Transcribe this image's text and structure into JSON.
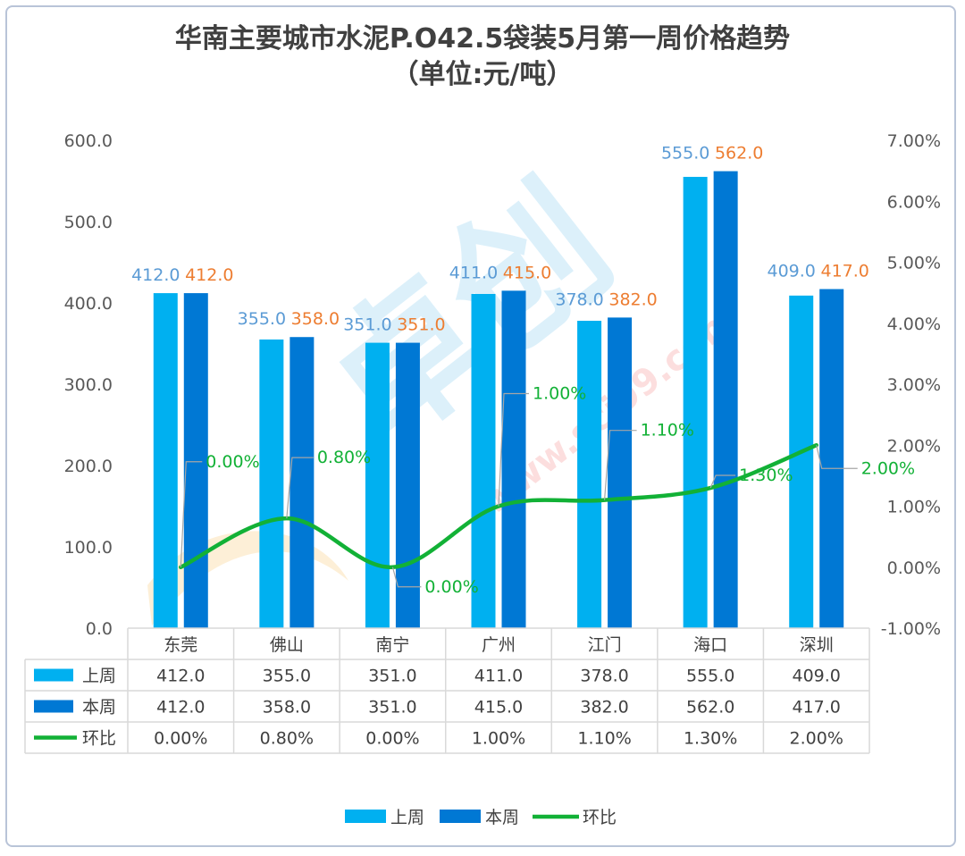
{
  "chart_title_lines": [
    "华南主要城市水泥P.O42.5袋装5月第一周价格趋势",
    "（单位:元/吨）"
  ],
  "colors": {
    "last_week": "#00b0f0",
    "this_week": "#0078d4",
    "mom": "#12b136",
    "last_week_label": "#5b9bd5",
    "this_week_label": "#ed7d31",
    "mom_label": "#12b136",
    "axis_text": "#595959",
    "table_border": "#d9d9d9"
  },
  "chart_data": {
    "type": "bar",
    "title": "华南主要城市水泥P.O42.5袋装5月第一周价格趋势（单位:元/吨）",
    "categories": [
      "东莞",
      "佛山",
      "南宁",
      "广州",
      "江门",
      "海口",
      "深圳"
    ],
    "series": [
      {
        "name": "上周",
        "type": "bar",
        "axis": "left",
        "values": [
          412.0,
          355.0,
          351.0,
          411.0,
          378.0,
          555.0,
          409.0
        ],
        "labels": [
          "412.0",
          "355.0",
          "351.0",
          "411.0",
          "378.0",
          "555.0",
          "409.0"
        ]
      },
      {
        "name": "本周",
        "type": "bar",
        "axis": "left",
        "values": [
          412.0,
          358.0,
          351.0,
          415.0,
          382.0,
          562.0,
          417.0
        ],
        "labels": [
          "412.0",
          "358.0",
          "351.0",
          "415.0",
          "382.0",
          "562.0",
          "417.0"
        ]
      },
      {
        "name": "环比",
        "type": "line",
        "axis": "right",
        "values": [
          0.0,
          0.8,
          0.0,
          1.0,
          1.1,
          1.3,
          2.0
        ],
        "labels": [
          "0.00%",
          "0.80%",
          "0.00%",
          "1.00%",
          "1.10%",
          "1.30%",
          "2.00%"
        ]
      }
    ],
    "y_left": {
      "min": 0,
      "max": 600,
      "ticks": [
        "600.0",
        "500.0",
        "400.0",
        "300.0",
        "200.0",
        "100.0",
        "0.0"
      ]
    },
    "y_right": {
      "min": -1,
      "max": 7,
      "ticks": [
        "7.00%",
        "6.00%",
        "5.00%",
        "4.00%",
        "3.00%",
        "2.00%",
        "1.00%",
        "0.00%",
        "-1.00%"
      ]
    },
    "legend": [
      "上周",
      "本周",
      "环比"
    ],
    "legend_position": "bottom",
    "data_table": true,
    "grid": false
  },
  "watermark": {
    "brand_text": "卓创",
    "url_text": "www.sci99.com"
  }
}
